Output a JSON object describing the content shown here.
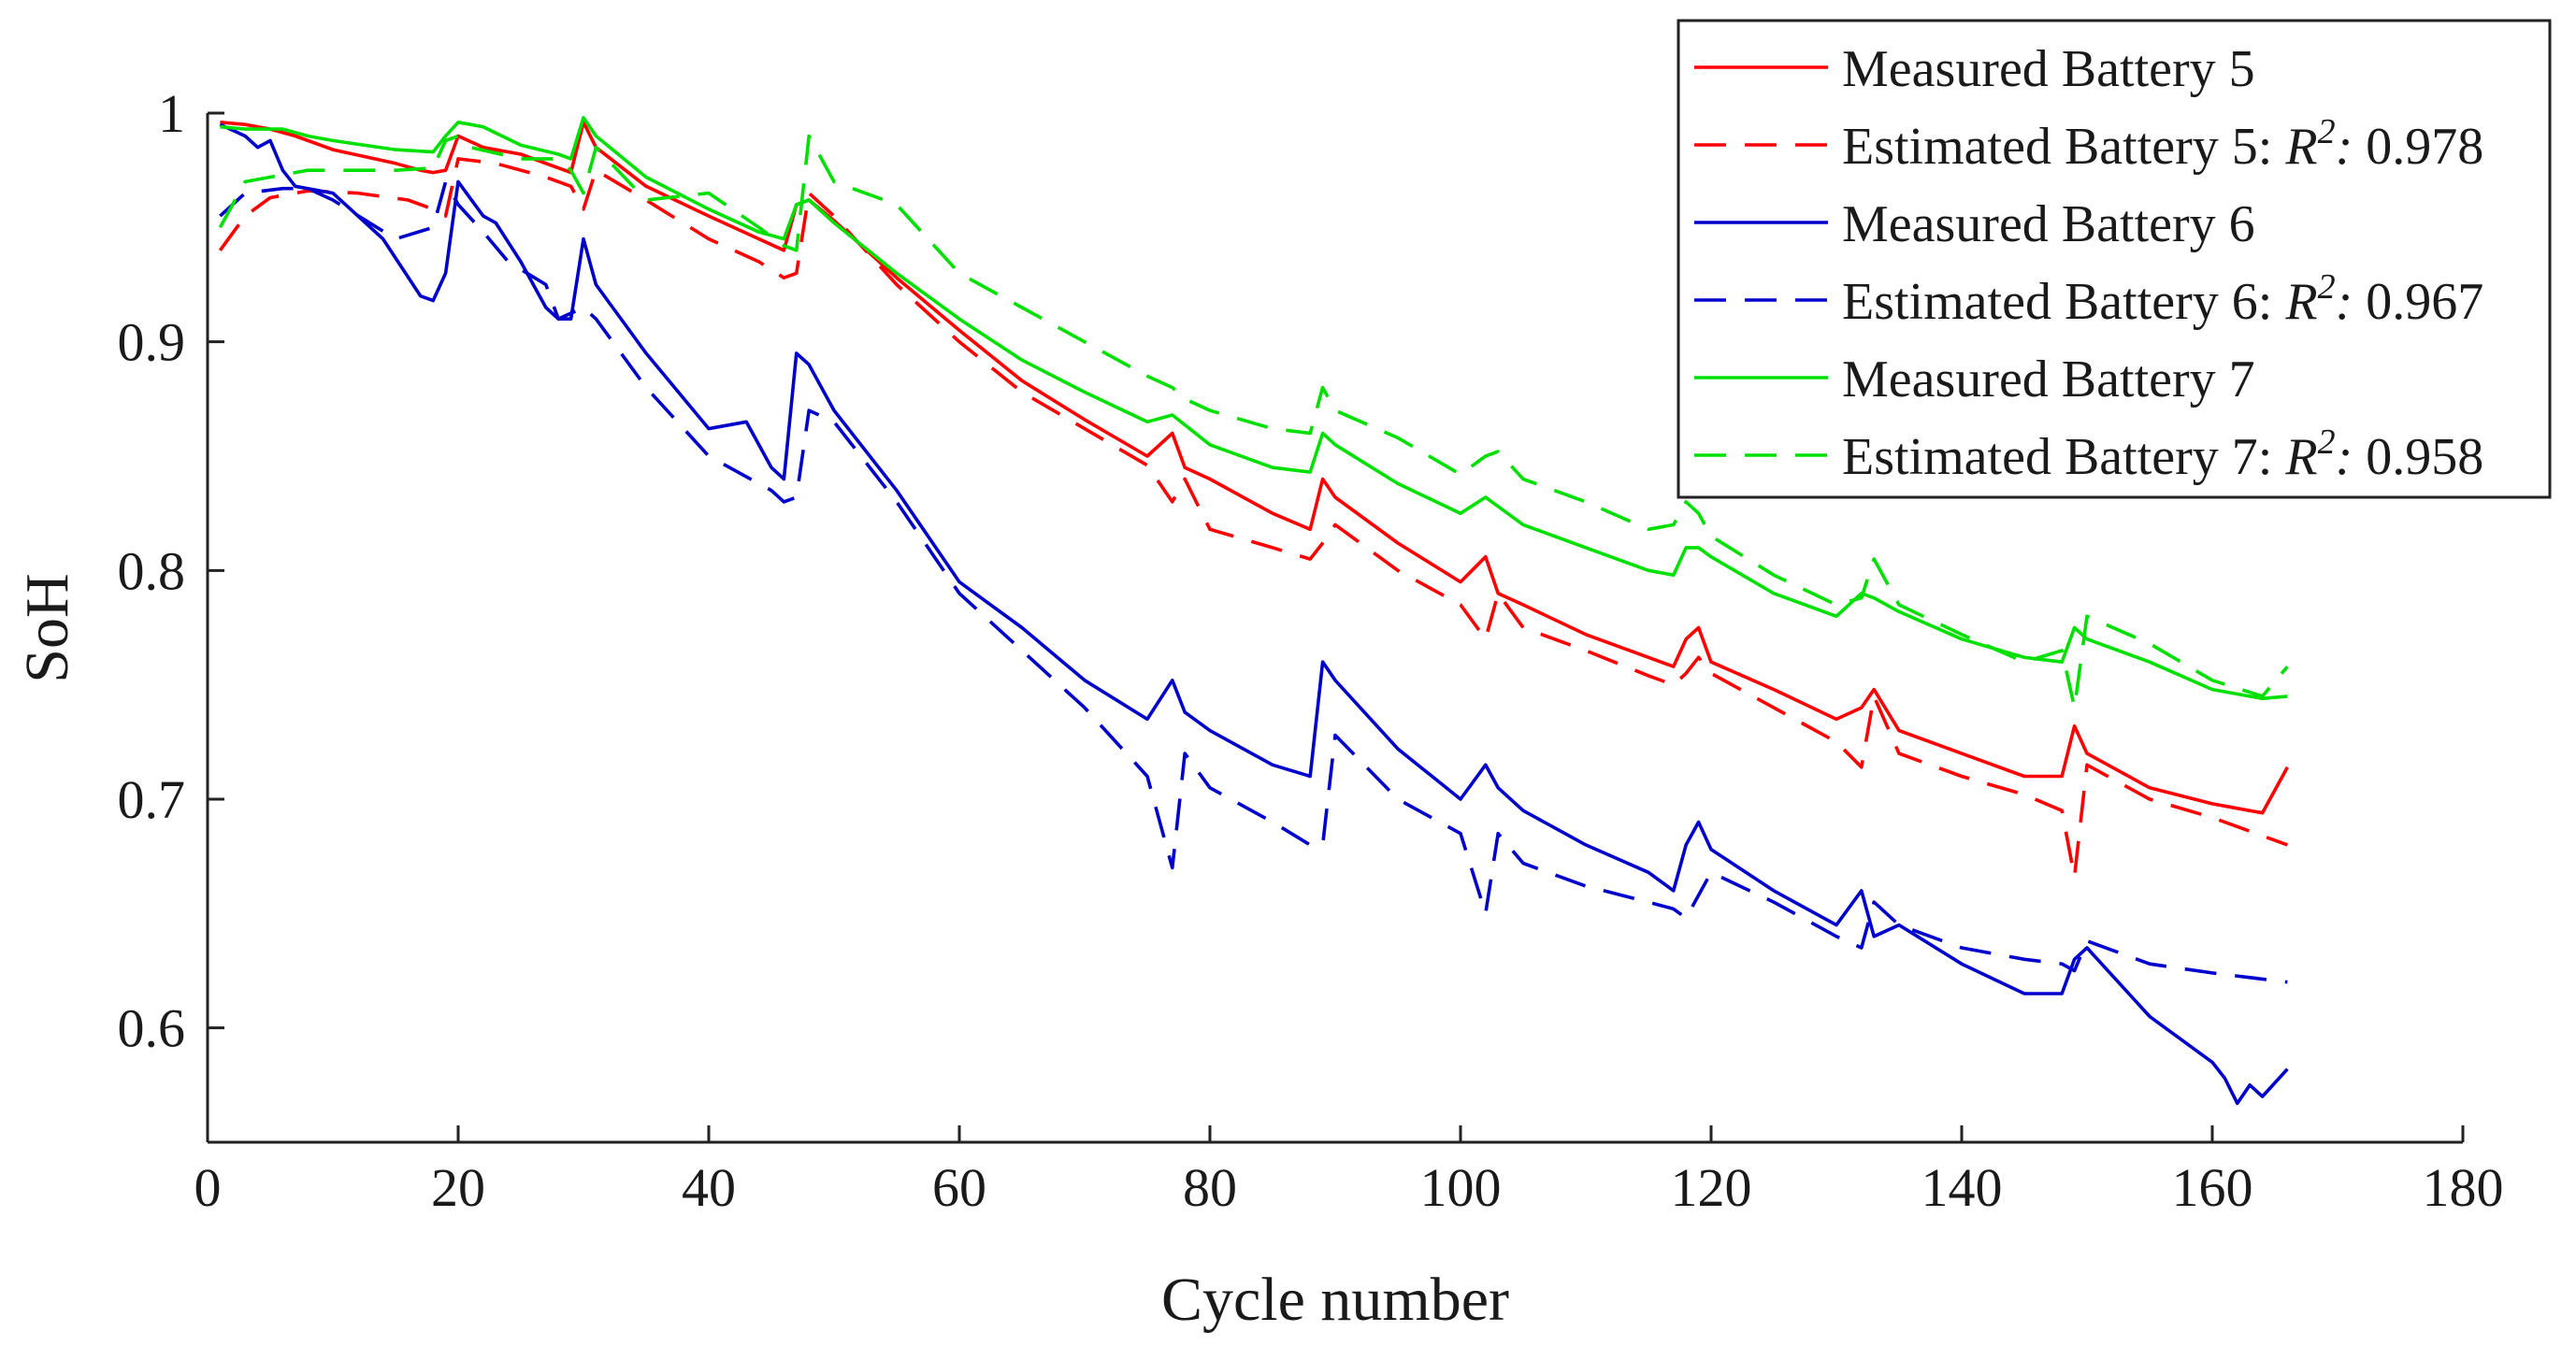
{
  "chart_data": {
    "type": "line",
    "title": "",
    "xlabel": "Cycle number",
    "ylabel": "SoH",
    "xlim": [
      0,
      180
    ],
    "ylim": [
      0.55,
      1.0
    ],
    "xticks": [
      "0",
      "20",
      "40",
      "60",
      "80",
      "100",
      "120",
      "140",
      "160",
      "180"
    ],
    "yticks": [
      "0.6",
      "0.7",
      "0.8",
      "0.9",
      "1"
    ],
    "grid": false,
    "legend_position": "top-right",
    "series": [
      {
        "name": "Measured Battery 5",
        "label_main": "Measured Battery 5",
        "color": "#ff0000",
        "dash": "solid",
        "x": [
          1,
          3,
          5,
          7,
          10,
          15,
          17,
          18,
          19,
          20,
          22,
          25,
          28,
          29,
          30,
          31,
          35,
          40,
          44,
          46,
          47,
          48,
          50,
          55,
          60,
          65,
          70,
          75,
          77,
          78,
          80,
          85,
          88,
          89,
          90,
          95,
          100,
          102,
          103,
          105,
          110,
          115,
          117,
          118,
          119,
          120,
          125,
          130,
          132,
          133,
          135,
          140,
          145,
          148,
          149,
          150,
          155,
          160,
          162,
          164,
          166
        ],
        "values": [
          0.996,
          0.995,
          0.993,
          0.99,
          0.984,
          0.978,
          0.975,
          0.974,
          0.975,
          0.99,
          0.985,
          0.982,
          0.976,
          0.974,
          0.996,
          0.985,
          0.968,
          0.955,
          0.945,
          0.94,
          0.96,
          0.962,
          0.953,
          0.928,
          0.905,
          0.883,
          0.866,
          0.85,
          0.86,
          0.845,
          0.84,
          0.825,
          0.818,
          0.84,
          0.832,
          0.812,
          0.795,
          0.806,
          0.79,
          0.785,
          0.772,
          0.762,
          0.758,
          0.77,
          0.775,
          0.76,
          0.748,
          0.735,
          0.74,
          0.748,
          0.73,
          0.72,
          0.71,
          0.71,
          0.732,
          0.72,
          0.705,
          0.698,
          0.696,
          0.694,
          0.714
        ]
      },
      {
        "name": "Estimated Battery 5: R^2: 0.978",
        "label_main": "Estimated Battery 5: ",
        "label_r": "R",
        "label_sup": "2",
        "label_colon": ":",
        "label_value": " 0.978",
        "color": "#ff0000",
        "dash": "dashed",
        "x": [
          1,
          3,
          5,
          8,
          12,
          16,
          18,
          19,
          20,
          23,
          27,
          29,
          30,
          31,
          35,
          40,
          44,
          46,
          47,
          48,
          50,
          55,
          60,
          65,
          70,
          75,
          77,
          78,
          80,
          85,
          88,
          89,
          90,
          95,
          100,
          102,
          103,
          105,
          110,
          115,
          117,
          118,
          119,
          120,
          125,
          130,
          132,
          133,
          135,
          140,
          145,
          148,
          149,
          150,
          155,
          160,
          166
        ],
        "values": [
          0.94,
          0.955,
          0.963,
          0.966,
          0.965,
          0.962,
          0.958,
          0.955,
          0.98,
          0.978,
          0.972,
          0.968,
          0.958,
          0.975,
          0.962,
          0.945,
          0.935,
          0.928,
          0.93,
          0.965,
          0.955,
          0.925,
          0.9,
          0.878,
          0.862,
          0.846,
          0.83,
          0.84,
          0.818,
          0.81,
          0.805,
          0.812,
          0.82,
          0.8,
          0.785,
          0.77,
          0.79,
          0.775,
          0.765,
          0.754,
          0.75,
          0.755,
          0.762,
          0.755,
          0.74,
          0.725,
          0.714,
          0.745,
          0.72,
          0.71,
          0.702,
          0.695,
          0.666,
          0.715,
          0.7,
          0.692,
          0.68
        ]
      },
      {
        "name": "Measured Battery 6",
        "label_main": "Measured Battery 6",
        "color": "#0000cc",
        "dash": "solid",
        "x": [
          1,
          3,
          4,
          5,
          6,
          7,
          10,
          14,
          17,
          18,
          19,
          20,
          22,
          23,
          25,
          27,
          28,
          29,
          30,
          31,
          35,
          40,
          43,
          45,
          46,
          47,
          48,
          50,
          55,
          60,
          65,
          70,
          75,
          77,
          78,
          80,
          85,
          88,
          89,
          90,
          95,
          100,
          102,
          103,
          105,
          110,
          115,
          117,
          118,
          119,
          120,
          125,
          130,
          132,
          133,
          135,
          140,
          145,
          148,
          149,
          150,
          155,
          160,
          161,
          162,
          163,
          164,
          166
        ],
        "values": [
          0.995,
          0.99,
          0.985,
          0.988,
          0.975,
          0.968,
          0.965,
          0.945,
          0.92,
          0.918,
          0.93,
          0.97,
          0.955,
          0.952,
          0.935,
          0.915,
          0.91,
          0.91,
          0.945,
          0.925,
          0.895,
          0.862,
          0.865,
          0.845,
          0.84,
          0.895,
          0.89,
          0.87,
          0.835,
          0.795,
          0.775,
          0.752,
          0.735,
          0.752,
          0.738,
          0.73,
          0.715,
          0.71,
          0.76,
          0.752,
          0.722,
          0.7,
          0.715,
          0.705,
          0.695,
          0.68,
          0.668,
          0.66,
          0.68,
          0.69,
          0.678,
          0.66,
          0.645,
          0.66,
          0.64,
          0.645,
          0.628,
          0.615,
          0.615,
          0.63,
          0.635,
          0.605,
          0.585,
          0.578,
          0.567,
          0.575,
          0.57,
          0.582
        ]
      },
      {
        "name": "Estimated Battery 6: R^2: 0.967",
        "label_main": "Estimated Battery 6: ",
        "label_r": "R",
        "label_sup": "2",
        "label_colon": ":",
        "label_value": " 0.967",
        "color": "#0000cc",
        "dash": "dashed",
        "x": [
          1,
          3,
          6,
          8,
          10,
          15,
          18,
          19,
          20,
          22,
          24,
          27,
          28,
          30,
          31,
          35,
          40,
          45,
          46,
          47,
          48,
          50,
          55,
          60,
          65,
          70,
          75,
          77,
          78,
          80,
          85,
          88,
          89,
          90,
          95,
          100,
          102,
          103,
          105,
          110,
          115,
          117,
          118,
          119,
          120,
          125,
          130,
          132,
          133,
          135,
          140,
          145,
          148,
          149,
          150,
          155,
          160,
          166
        ],
        "values": [
          0.955,
          0.965,
          0.967,
          0.967,
          0.962,
          0.945,
          0.95,
          0.97,
          0.96,
          0.948,
          0.935,
          0.925,
          0.91,
          0.915,
          0.91,
          0.88,
          0.85,
          0.835,
          0.83,
          0.832,
          0.87,
          0.865,
          0.83,
          0.79,
          0.765,
          0.74,
          0.71,
          0.67,
          0.72,
          0.705,
          0.69,
          0.68,
          0.68,
          0.728,
          0.7,
          0.685,
          0.65,
          0.685,
          0.672,
          0.662,
          0.655,
          0.652,
          0.648,
          0.658,
          0.668,
          0.655,
          0.64,
          0.635,
          0.655,
          0.645,
          0.635,
          0.63,
          0.628,
          0.625,
          0.638,
          0.628,
          0.624,
          0.62
        ]
      },
      {
        "name": "Measured Battery 7",
        "label_main": "Measured Battery 7",
        "color": "#00e000",
        "dash": "solid",
        "x": [
          1,
          3,
          6,
          8,
          10,
          15,
          18,
          19,
          20,
          21,
          22,
          25,
          28,
          29,
          30,
          31,
          35,
          40,
          44,
          46,
          47,
          48,
          50,
          55,
          60,
          65,
          70,
          75,
          77,
          80,
          85,
          88,
          89,
          90,
          95,
          100,
          102,
          103,
          105,
          110,
          115,
          117,
          118,
          119,
          120,
          125,
          130,
          132,
          133,
          135,
          140,
          145,
          148,
          149,
          150,
          155,
          160,
          164,
          166
        ],
        "values": [
          0.994,
          0.993,
          0.993,
          0.99,
          0.988,
          0.984,
          0.983,
          0.99,
          0.996,
          0.995,
          0.994,
          0.986,
          0.982,
          0.98,
          0.998,
          0.99,
          0.972,
          0.958,
          0.948,
          0.945,
          0.96,
          0.962,
          0.952,
          0.93,
          0.91,
          0.892,
          0.878,
          0.865,
          0.868,
          0.855,
          0.845,
          0.843,
          0.86,
          0.855,
          0.838,
          0.825,
          0.832,
          0.828,
          0.82,
          0.81,
          0.8,
          0.798,
          0.81,
          0.81,
          0.806,
          0.79,
          0.78,
          0.79,
          0.788,
          0.782,
          0.77,
          0.762,
          0.76,
          0.775,
          0.77,
          0.76,
          0.748,
          0.744,
          0.745
        ]
      },
      {
        "name": "Estimated Battery 7: R^2: 0.958",
        "label_main": "Estimated Battery 7: ",
        "label_r": "R",
        "label_sup": "2",
        "label_colon": ":",
        "label_value": " 0.958",
        "color": "#00e000",
        "dash": "dashed",
        "x": [
          1,
          3,
          5,
          8,
          10,
          15,
          18,
          19,
          20,
          21,
          25,
          28,
          29,
          30,
          31,
          35,
          40,
          44,
          46,
          47,
          48,
          50,
          55,
          60,
          65,
          70,
          75,
          77,
          78,
          80,
          85,
          88,
          89,
          90,
          95,
          100,
          102,
          103,
          105,
          110,
          115,
          117,
          118,
          119,
          120,
          125,
          130,
          132,
          133,
          135,
          140,
          145,
          148,
          149,
          150,
          155,
          160,
          164,
          166
        ],
        "values": [
          0.95,
          0.97,
          0.972,
          0.975,
          0.975,
          0.975,
          0.976,
          0.988,
          0.99,
          0.985,
          0.98,
          0.98,
          0.975,
          0.965,
          0.985,
          0.962,
          0.965,
          0.95,
          0.942,
          0.94,
          0.99,
          0.97,
          0.96,
          0.93,
          0.915,
          0.9,
          0.885,
          0.88,
          0.875,
          0.87,
          0.862,
          0.86,
          0.88,
          0.87,
          0.858,
          0.842,
          0.85,
          0.852,
          0.84,
          0.83,
          0.818,
          0.82,
          0.83,
          0.825,
          0.815,
          0.798,
          0.785,
          0.788,
          0.805,
          0.785,
          0.772,
          0.76,
          0.765,
          0.74,
          0.78,
          0.768,
          0.752,
          0.745,
          0.758
        ]
      }
    ]
  }
}
